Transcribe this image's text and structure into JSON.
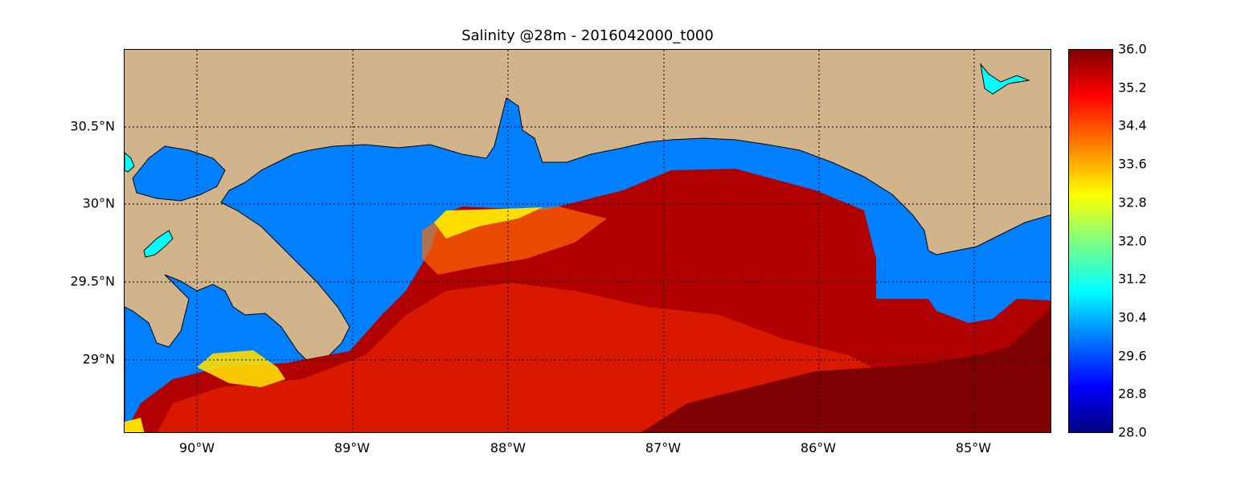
{
  "title": "Salinity @28m - 2016042000_t000",
  "colors": {
    "land": "#d2b48c",
    "water_fresh": "#0080ff",
    "lake": "#00ffff",
    "salinity_high": "#7f0000",
    "salinity_mid": "#e01c00",
    "salinity_orange": "#ff6a00",
    "salinity_yellow": "#ffdd00"
  },
  "map": {
    "lon_range": [
      -90.5,
      -84.5
    ],
    "lat_range": [
      28.55,
      31.0
    ],
    "grid": true,
    "lon_ticks": [
      "90°W",
      "89°W",
      "88°W",
      "87°W",
      "86°W",
      "85°W"
    ],
    "lat_ticks": [
      "30.5°N",
      "30°N",
      "29.5°N",
      "29°N"
    ]
  },
  "colorbar": {
    "min": 28.0,
    "max": 36.0,
    "labels": [
      "36.0",
      "35.2",
      "34.4",
      "33.6",
      "32.8",
      "32.0",
      "31.2",
      "30.4",
      "29.6",
      "28.8",
      "28.0"
    ]
  }
}
